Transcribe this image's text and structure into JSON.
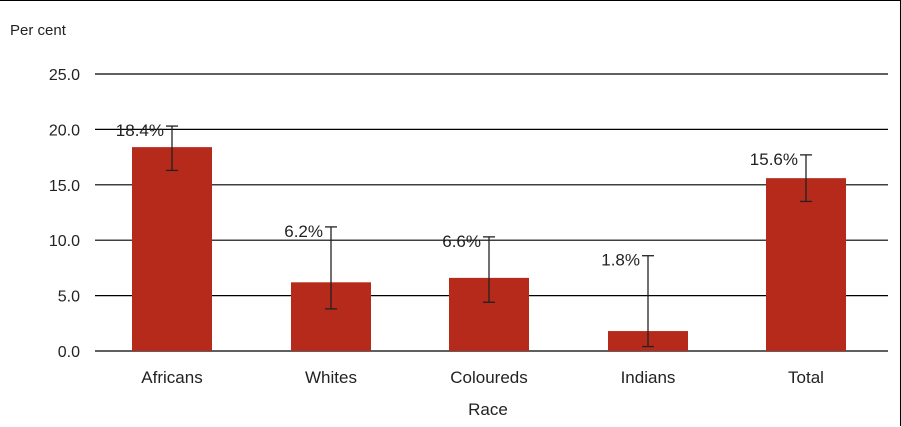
{
  "chart_data": {
    "type": "bar",
    "unit_label": "Per cent",
    "xlabel": "Race",
    "categories": [
      "Africans",
      "Whites",
      "Coloureds",
      "Indians",
      "Total"
    ],
    "values": [
      18.4,
      6.2,
      6.6,
      1.8,
      15.6
    ],
    "value_labels": [
      "18.4%",
      "6.2%",
      "6.6%",
      "1.8%",
      "15.6%"
    ],
    "error_low": [
      16.3,
      3.8,
      4.4,
      0.4,
      13.5
    ],
    "error_high": [
      20.3,
      11.2,
      10.3,
      8.6,
      17.7
    ],
    "y_ticks": [
      0,
      5,
      10,
      15,
      20,
      25
    ],
    "y_tick_labels": [
      "0.0",
      "5.0",
      "10.0",
      "15.0",
      "20.0",
      "25.0"
    ],
    "ylim": [
      0,
      25
    ],
    "grid": true,
    "bar_color": "#b52a1a",
    "error_bar_color": "#222222",
    "grid_color": "#000000"
  }
}
